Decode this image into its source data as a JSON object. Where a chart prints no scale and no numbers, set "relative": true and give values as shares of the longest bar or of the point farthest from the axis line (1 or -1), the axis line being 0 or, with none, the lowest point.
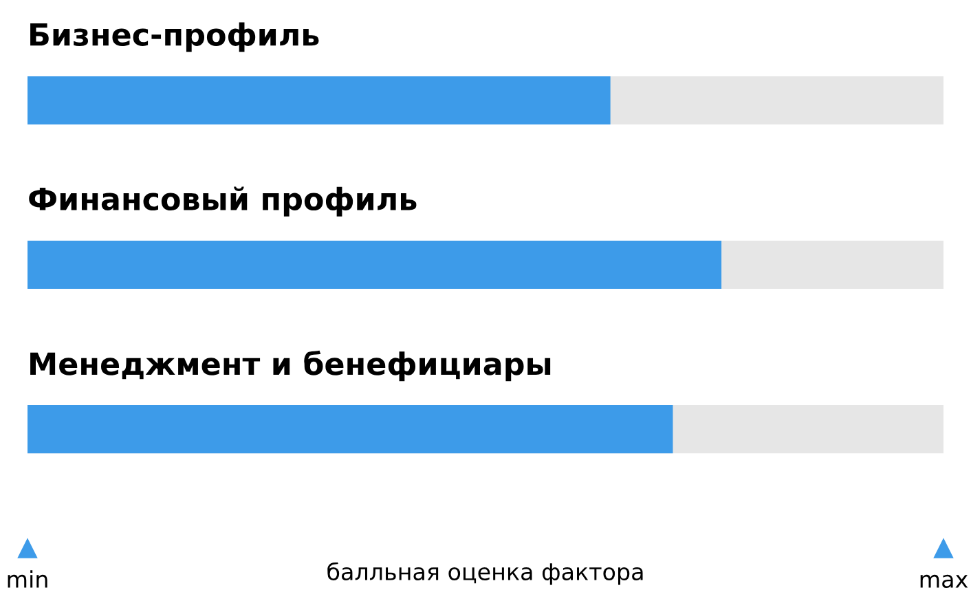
{
  "chart_data": {
    "type": "bar",
    "orientation": "horizontal",
    "relative": true,
    "categories": [
      "Бизнес-профиль",
      "Финансовый профиль",
      "Менеджмент и бенефициары"
    ],
    "values": [
      0.84,
      1,
      0.93
    ],
    "color": "#3d9be9",
    "xlabel": "балльная оценка фактора",
    "annotations": [
      "min",
      "max"
    ],
    "bands": [
      {
        "axis": "x",
        "from": 0,
        "to": 1.32,
        "color": "#e6e6e6"
      }
    ]
  }
}
